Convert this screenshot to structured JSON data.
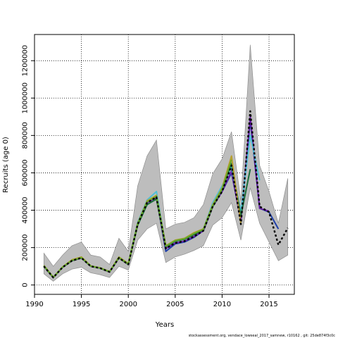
{
  "chart_data": {
    "type": "line",
    "title": "",
    "xlabel": "Years",
    "ylabel": "Recruits (age 0)",
    "xlim": [
      1990,
      2017.7
    ],
    "ylim": [
      -50000,
      1340000
    ],
    "xticks": [
      1990,
      1995,
      2000,
      2005,
      2010,
      2015
    ],
    "yticks": [
      0,
      200000,
      400000,
      600000,
      800000,
      1000000,
      1200000
    ],
    "grid": true,
    "footnote": "stockassessment.org, vendace_lowseal_2017_samnew, r10162 , git: 25de874f3c0c",
    "band": {
      "x": [
        1991,
        1992,
        1993,
        1994,
        1995,
        1996,
        1997,
        1998,
        1999,
        2000,
        2001,
        2002,
        2003,
        2004,
        2005,
        2006,
        2007,
        2008,
        2009,
        2010,
        2011,
        2012,
        2013,
        2014,
        2015,
        2016,
        2017
      ],
      "upper": [
        170000,
        100000,
        160000,
        210000,
        230000,
        160000,
        150000,
        110000,
        250000,
        180000,
        530000,
        690000,
        775000,
        300000,
        325000,
        335000,
        360000,
        430000,
        595000,
        675000,
        820000,
        450000,
        1285000,
        640000,
        500000,
        330000,
        570000
      ],
      "lower": [
        60000,
        20000,
        60000,
        85000,
        95000,
        65000,
        55000,
        40000,
        100000,
        80000,
        240000,
        300000,
        330000,
        120000,
        150000,
        165000,
        185000,
        210000,
        320000,
        360000,
        440000,
        240000,
        520000,
        330000,
        230000,
        130000,
        160000
      ]
    },
    "series": [
      {
        "color": "#000000",
        "dashed": true,
        "x": [
          1991,
          1992,
          1993,
          1994,
          1995,
          1996,
          1997,
          1998,
          1999,
          2000,
          2001,
          2002,
          2003,
          2004,
          2005,
          2006,
          2007,
          2008,
          2009,
          2010,
          2011,
          2012,
          2013,
          2014,
          2015,
          2016,
          2017
        ],
        "values": [
          100000,
          40000,
          95000,
          130000,
          145000,
          100000,
          90000,
          70000,
          145000,
          110000,
          325000,
          440000,
          470000,
          195000,
          225000,
          235000,
          260000,
          290000,
          420000,
          500000,
          640000,
          325000,
          930000,
          420000,
          390000,
          215000,
          305000
        ]
      },
      {
        "color": "#1f3fa8",
        "dashed": false,
        "x": [
          1991,
          1992,
          1993,
          1994,
          1995,
          1996,
          1997,
          1998,
          1999,
          2000,
          2001,
          2002,
          2003,
          2004,
          2005,
          2006,
          2007,
          2008,
          2009,
          2010,
          2011,
          2012,
          2013,
          2014,
          2015,
          2016
        ],
        "values": [
          100000,
          40000,
          95000,
          130000,
          145000,
          100000,
          90000,
          70000,
          145000,
          110000,
          325000,
          440000,
          470000,
          180000,
          220000,
          230000,
          255000,
          290000,
          420000,
          500000,
          600000,
          350000,
          880000,
          410000,
          390000,
          300000
        ]
      },
      {
        "color": "#6a1fa8",
        "dashed": false,
        "x": [
          1991,
          1992,
          1993,
          1994,
          1995,
          1996,
          1997,
          1998,
          1999,
          2000,
          2001,
          2002,
          2003,
          2004,
          2005,
          2006,
          2007,
          2008,
          2009,
          2010,
          2011,
          2012,
          2013,
          2014,
          2015
        ],
        "values": [
          100000,
          40000,
          95000,
          130000,
          145000,
          100000,
          90000,
          70000,
          145000,
          110000,
          325000,
          440000,
          470000,
          195000,
          225000,
          235000,
          260000,
          290000,
          420000,
          500000,
          610000,
          340000,
          900000,
          410000,
          395000
        ]
      },
      {
        "color": "#4fc0d8",
        "dashed": false,
        "x": [
          1991,
          1992,
          1993,
          1994,
          1995,
          1996,
          1997,
          1998,
          1999,
          2000,
          2001,
          2002,
          2003,
          2004,
          2005,
          2006,
          2007,
          2008,
          2009,
          2010,
          2011,
          2012,
          2013,
          2014
        ],
        "values": [
          105000,
          42000,
          97000,
          132000,
          148000,
          102000,
          92000,
          72000,
          150000,
          115000,
          335000,
          455000,
          500000,
          205000,
          235000,
          245000,
          275000,
          300000,
          440000,
          530000,
          630000,
          390000,
          800000,
          560000
        ]
      },
      {
        "color": "#1a6e3a",
        "dashed": false,
        "x": [
          1991,
          1992,
          1993,
          1994,
          1995,
          1996,
          1997,
          1998,
          1999,
          2000,
          2001,
          2002,
          2003,
          2004,
          2005,
          2006,
          2007,
          2008,
          2009,
          2010,
          2011,
          2012,
          2013
        ],
        "values": [
          100000,
          40000,
          95000,
          130000,
          145000,
          100000,
          90000,
          70000,
          145000,
          110000,
          320000,
          430000,
          460000,
          205000,
          235000,
          245000,
          270000,
          295000,
          420000,
          510000,
          650000,
          370000,
          620000
        ]
      },
      {
        "color": "#b8a030",
        "dashed": false,
        "x": [
          1991,
          1992,
          1993,
          1994,
          1995,
          1996,
          1997,
          1998,
          1999,
          2000,
          2001,
          2002,
          2003,
          2004,
          2005,
          2006,
          2007,
          2008,
          2009,
          2010,
          2011,
          2012
        ],
        "values": [
          105000,
          42000,
          97000,
          135000,
          150000,
          102000,
          92000,
          72000,
          150000,
          115000,
          330000,
          450000,
          480000,
          210000,
          240000,
          250000,
          280000,
          300000,
          430000,
          520000,
          690000,
          330000
        ]
      },
      {
        "color": "#6aa82a",
        "dashed": false,
        "x": [
          1991,
          1992,
          1993,
          1994,
          1995,
          1996,
          1997,
          1998,
          1999,
          2000,
          2001,
          2002,
          2003,
          2004,
          2005,
          2006,
          2007,
          2008,
          2009,
          2010,
          2011
        ],
        "values": [
          103000,
          41000,
          96000,
          132000,
          147000,
          101000,
          91000,
          71000,
          147000,
          112000,
          328000,
          445000,
          475000,
          208000,
          238000,
          248000,
          276000,
          298000,
          425000,
          515000,
          670000
        ]
      }
    ]
  }
}
